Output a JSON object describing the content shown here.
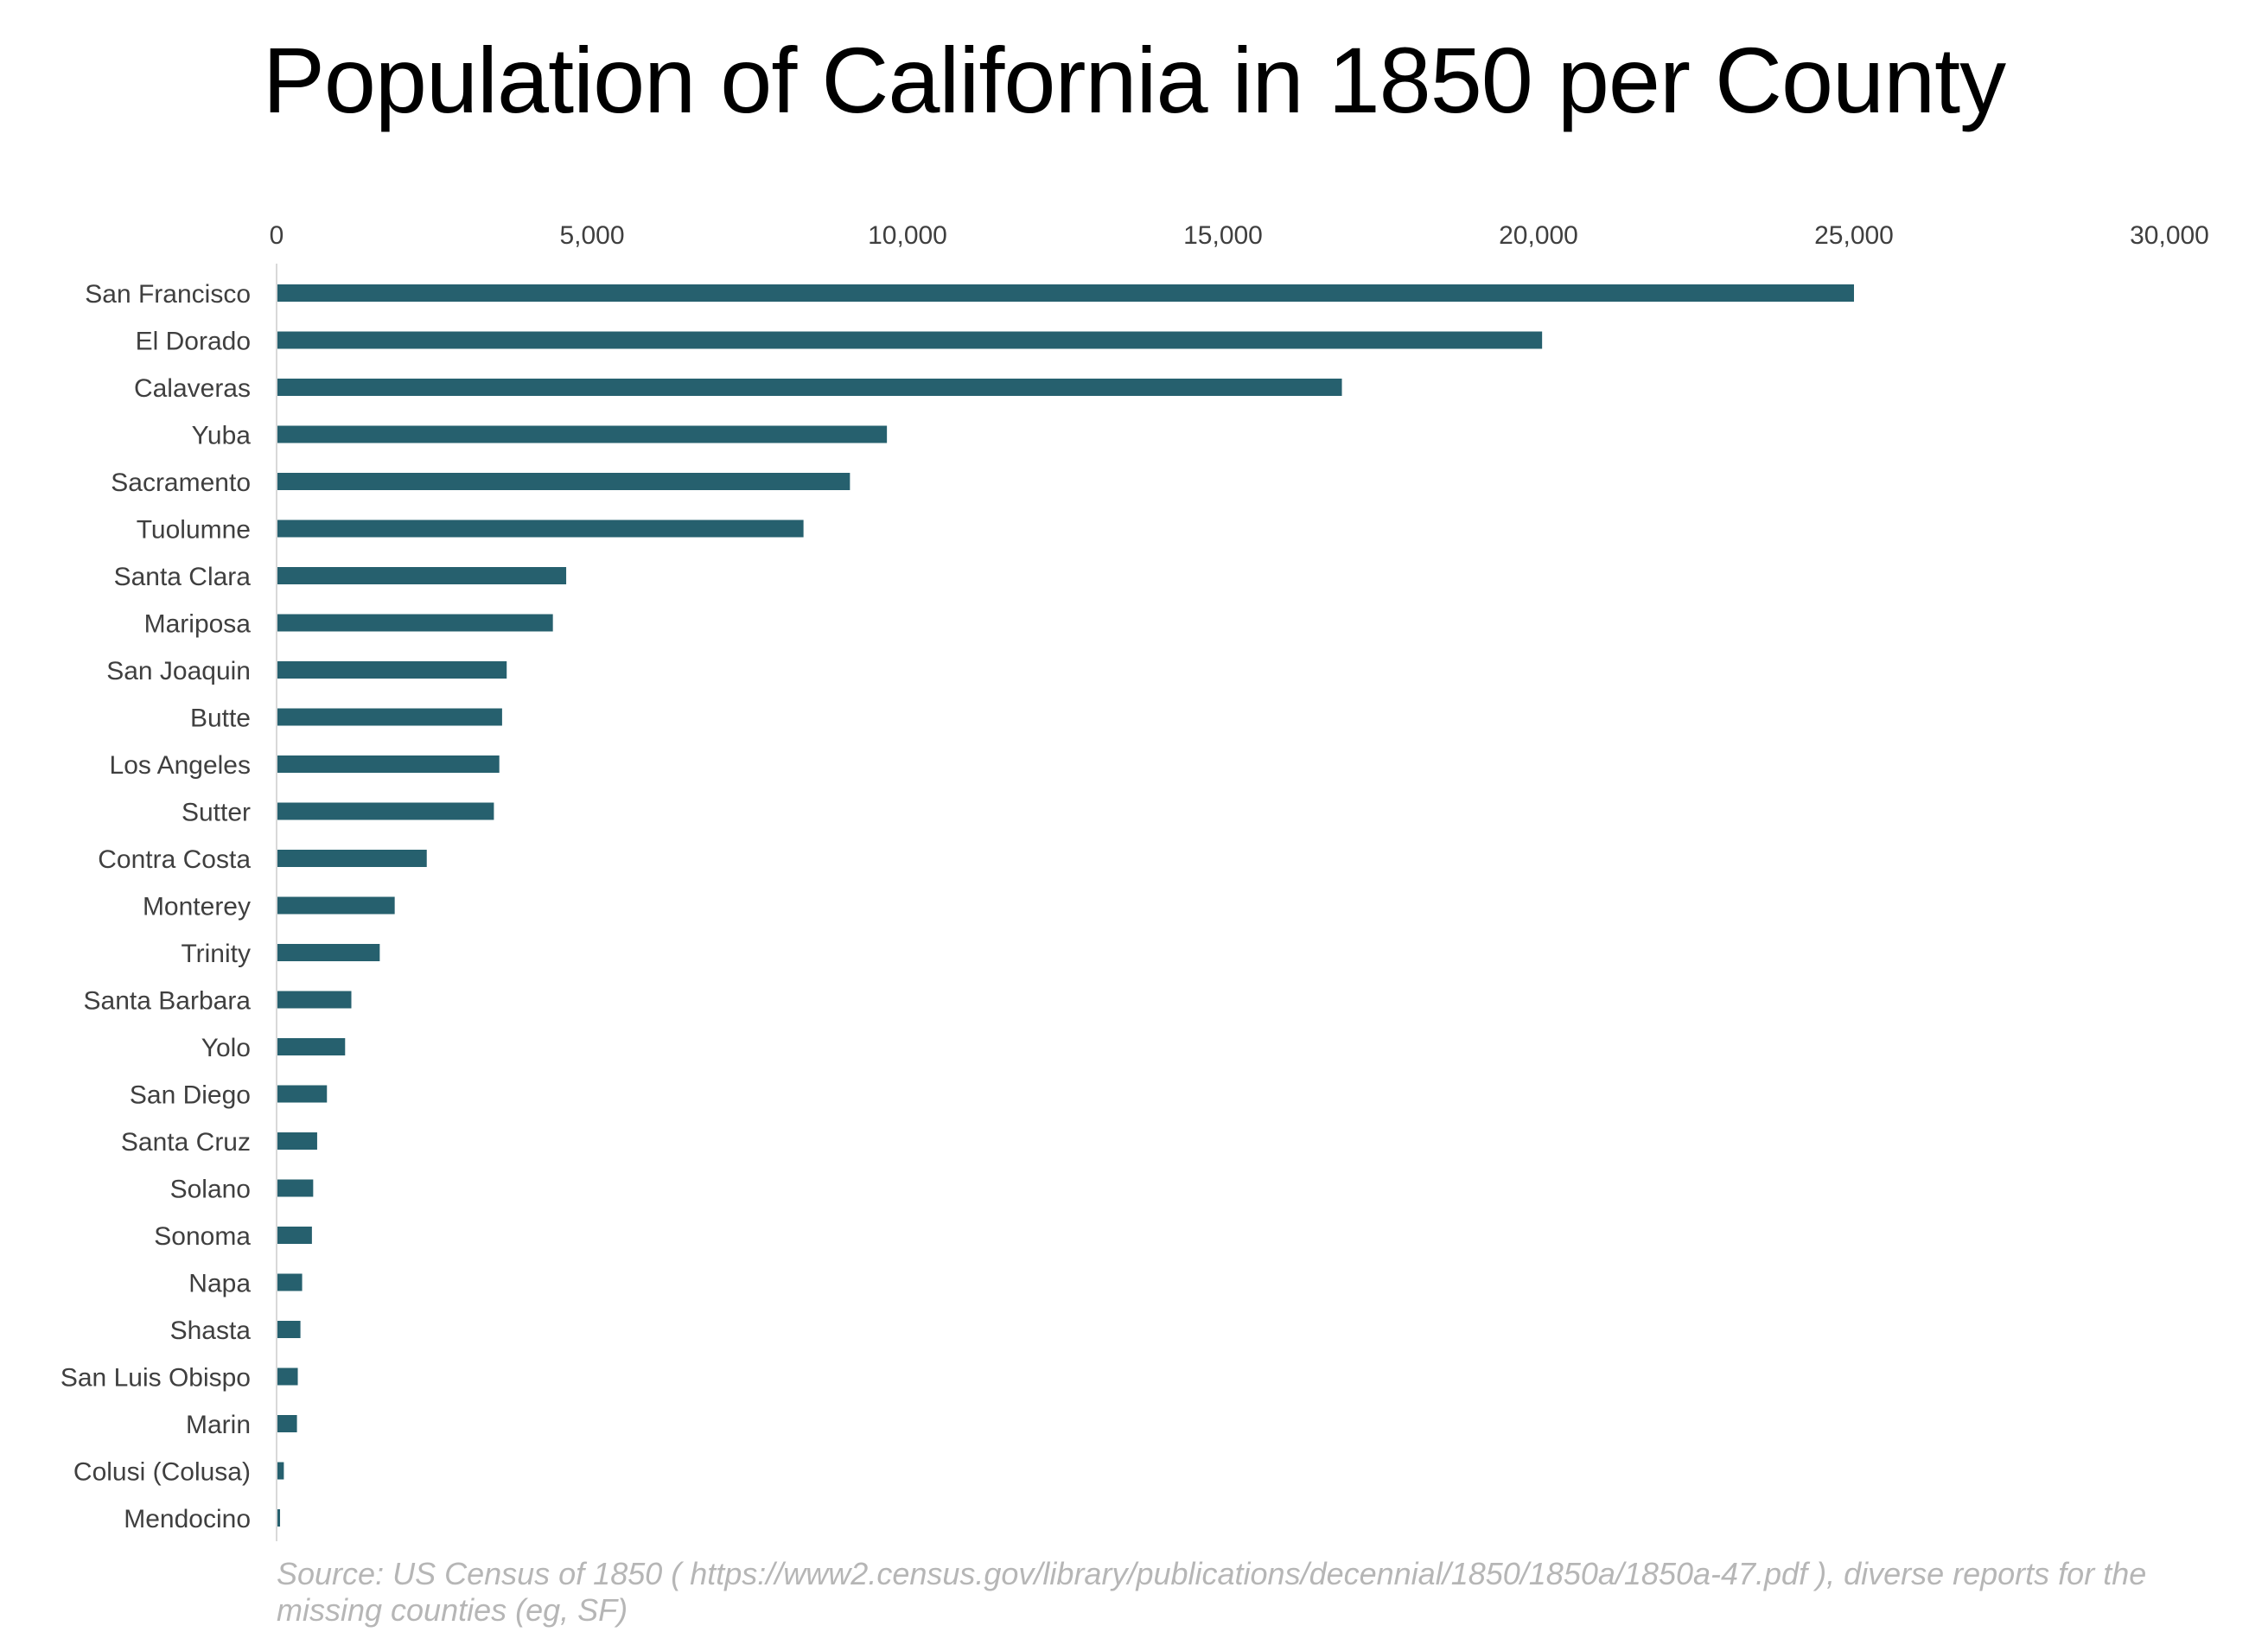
{
  "chart_data": {
    "type": "bar",
    "orientation": "horizontal",
    "title": "Population of California in 1850 per County",
    "xlabel": "",
    "ylabel": "",
    "xlim": [
      0,
      30000
    ],
    "xticks": [
      "0",
      "5,000",
      "10,000",
      "15,000",
      "20,000",
      "25,000",
      "30,000"
    ],
    "xtick_values": [
      0,
      5000,
      10000,
      15000,
      20000,
      25000,
      30000
    ],
    "x_axis_position": "top",
    "grid": false,
    "legend": "none",
    "bar_color": "#26606e",
    "categories": [
      "San Francisco",
      "El Dorado",
      "Calaveras",
      "Yuba",
      "Sacramento",
      "Tuolumne",
      "Santa Clara",
      "Mariposa",
      "San Joaquin",
      "Butte",
      "Los Angeles",
      "Sutter",
      "Contra Costa",
      "Monterey",
      "Trinity",
      "Santa Barbara",
      "Yolo",
      "San Diego",
      "Santa Cruz",
      "Solano",
      "Sonoma",
      "Napa",
      "Shasta",
      "San Luis Obispo",
      "Marin",
      "Colusi (Colusa)",
      "Mendocino"
    ],
    "values": [
      25000,
      20057,
      16884,
      9673,
      9087,
      8351,
      4590,
      4379,
      3647,
      3574,
      3530,
      3444,
      2380,
      1872,
      1635,
      1185,
      1086,
      798,
      643,
      580,
      560,
      405,
      378,
      336,
      323,
      115,
      55
    ],
    "source_note": "Source:  US Census of 1850 ( https://www2.census.gov/library/publications/decennial/1850/1850a/1850a-47.pdf ), diverse reports for the missing counties (eg, SF)"
  }
}
